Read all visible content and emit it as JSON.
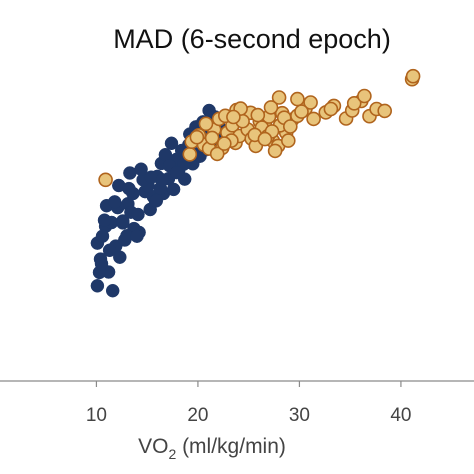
{
  "chart_data": {
    "type": "scatter",
    "title": "MAD (6-second epoch)",
    "xlabel": {
      "main": "VO",
      "sub": "2",
      "rest": " (ml/kg/min)"
    },
    "ylabel": "",
    "xlim": [
      0.5,
      47.2
    ],
    "ylim": [
      0,
      1
    ],
    "x_ticks": [
      10,
      20,
      30,
      40
    ],
    "x_tick_labels": [
      "10",
      "20",
      "30",
      "40"
    ],
    "grid": false,
    "legend": "none",
    "series": [
      {
        "color": "#1f3868",
        "stroke": "#1f3868",
        "points": [
          [
            10.1,
            0.362
          ],
          [
            10.4,
            0.32
          ],
          [
            10.9,
            0.406
          ],
          [
            11.2,
            0.286
          ],
          [
            11.6,
            0.237
          ],
          [
            11.9,
            0.354
          ],
          [
            12.3,
            0.325
          ],
          [
            12.6,
            0.42
          ],
          [
            13.1,
            0.465
          ],
          [
            13.4,
            0.443
          ],
          [
            13.9,
            0.383
          ],
          [
            14.2,
            0.39
          ],
          [
            14.8,
            0.497
          ],
          [
            15.1,
            0.512
          ],
          [
            15.6,
            0.484
          ],
          [
            16.0,
            0.537
          ],
          [
            16.4,
            0.571
          ],
          [
            17.1,
            0.531
          ],
          [
            17.9,
            0.582
          ],
          [
            18.4,
            0.605
          ],
          [
            19.2,
            0.648
          ],
          [
            19.8,
            0.667
          ],
          [
            20.5,
            0.68
          ],
          [
            21.1,
            0.71
          ],
          [
            21.6,
            0.61
          ],
          [
            22.1,
            0.636
          ],
          [
            22.7,
            0.654
          ],
          [
            13.3,
            0.546
          ],
          [
            14.6,
            0.528
          ],
          [
            15.8,
            0.474
          ],
          [
            16.6,
            0.492
          ],
          [
            17.6,
            0.503
          ],
          [
            18.1,
            0.551
          ],
          [
            19.5,
            0.57
          ],
          [
            20.8,
            0.607
          ],
          [
            11.5,
            0.416
          ],
          [
            12.8,
            0.37
          ],
          [
            13.7,
            0.4
          ],
          [
            15.3,
            0.45
          ],
          [
            18.7,
            0.53
          ],
          [
            20.2,
            0.59
          ],
          [
            10.6,
            0.38
          ],
          [
            10.1,
            0.25
          ],
          [
            10.3,
            0.285
          ],
          [
            11.0,
            0.46
          ],
          [
            12.2,
            0.513
          ],
          [
            14.4,
            0.556
          ],
          [
            16.8,
            0.594
          ],
          [
            17.4,
            0.624
          ],
          [
            21.4,
            0.696
          ],
          [
            12.1,
            0.455
          ],
          [
            13.6,
            0.492
          ],
          [
            15.4,
            0.535
          ],
          [
            17.2,
            0.565
          ],
          [
            19.1,
            0.62
          ],
          [
            20.3,
            0.654
          ],
          [
            21.7,
            0.693
          ],
          [
            12.6,
            0.415
          ],
          [
            14.1,
            0.437
          ],
          [
            16.3,
            0.506
          ],
          [
            18.6,
            0.569
          ],
          [
            11.3,
            0.343
          ],
          [
            10.5,
            0.308
          ],
          [
            13.0,
            0.381
          ],
          [
            15.9,
            0.473
          ],
          [
            19.6,
            0.598
          ],
          [
            20.9,
            0.628
          ],
          [
            14.0,
            0.38
          ],
          [
            16.5,
            0.528
          ],
          [
            17.9,
            0.547
          ],
          [
            18.9,
            0.589
          ],
          [
            22.3,
            0.661
          ],
          [
            10.8,
            0.422
          ],
          [
            11.8,
            0.47
          ],
          [
            13.2,
            0.505
          ]
        ]
      },
      {
        "color": "#e8c47b",
        "stroke": "#b0641d",
        "points": [
          [
            10.9,
            0.528
          ],
          [
            19.2,
            0.595
          ],
          [
            19.4,
            0.628
          ],
          [
            20.1,
            0.645
          ],
          [
            20.6,
            0.62
          ],
          [
            21.1,
            0.61
          ],
          [
            21.6,
            0.66
          ],
          [
            22.1,
            0.688
          ],
          [
            22.4,
            0.612
          ],
          [
            22.9,
            0.652
          ],
          [
            23.4,
            0.671
          ],
          [
            23.7,
            0.625
          ],
          [
            24.1,
            0.643
          ],
          [
            24.5,
            0.7
          ],
          [
            24.9,
            0.66
          ],
          [
            25.3,
            0.636
          ],
          [
            25.7,
            0.617
          ],
          [
            26.1,
            0.682
          ],
          [
            26.6,
            0.675
          ],
          [
            27.0,
            0.694
          ],
          [
            27.4,
            0.63
          ],
          [
            27.9,
            0.617
          ],
          [
            28.3,
            0.703
          ],
          [
            28.7,
            0.652
          ],
          [
            29.3,
            0.686
          ],
          [
            29.8,
            0.696
          ],
          [
            30.6,
            0.715
          ],
          [
            31.4,
            0.688
          ],
          [
            32.6,
            0.705
          ],
          [
            33.4,
            0.722
          ],
          [
            34.6,
            0.689
          ],
          [
            35.2,
            0.71
          ],
          [
            36.1,
            0.735
          ],
          [
            36.9,
            0.695
          ],
          [
            37.6,
            0.714
          ],
          [
            38.4,
            0.709
          ],
          [
            41.1,
            0.792
          ],
          [
            41.2,
            0.8
          ],
          [
            29.8,
            0.74
          ],
          [
            31.1,
            0.731
          ],
          [
            33.1,
            0.714
          ],
          [
            35.4,
            0.729
          ],
          [
            36.4,
            0.748
          ],
          [
            28.0,
            0.744
          ],
          [
            27.2,
            0.718
          ],
          [
            25.2,
            0.704
          ],
          [
            23.8,
            0.711
          ],
          [
            22.7,
            0.696
          ],
          [
            24.4,
            0.682
          ],
          [
            26.3,
            0.665
          ],
          [
            28.1,
            0.671
          ],
          [
            26.9,
            0.643
          ],
          [
            25.6,
            0.646
          ],
          [
            23.3,
            0.631
          ],
          [
            20.8,
            0.675
          ],
          [
            21.9,
            0.596
          ],
          [
            19.9,
            0.64
          ],
          [
            27.6,
            0.604
          ],
          [
            28.9,
            0.631
          ],
          [
            22.6,
            0.623
          ],
          [
            24.2,
            0.715
          ],
          [
            27.3,
            0.655
          ],
          [
            28.5,
            0.691
          ],
          [
            30.2,
            0.707
          ],
          [
            25.9,
            0.698
          ],
          [
            23.5,
            0.693
          ],
          [
            21.4,
            0.638
          ],
          [
            26.6,
            0.635
          ],
          [
            29.1,
            0.668
          ]
        ]
      }
    ]
  }
}
